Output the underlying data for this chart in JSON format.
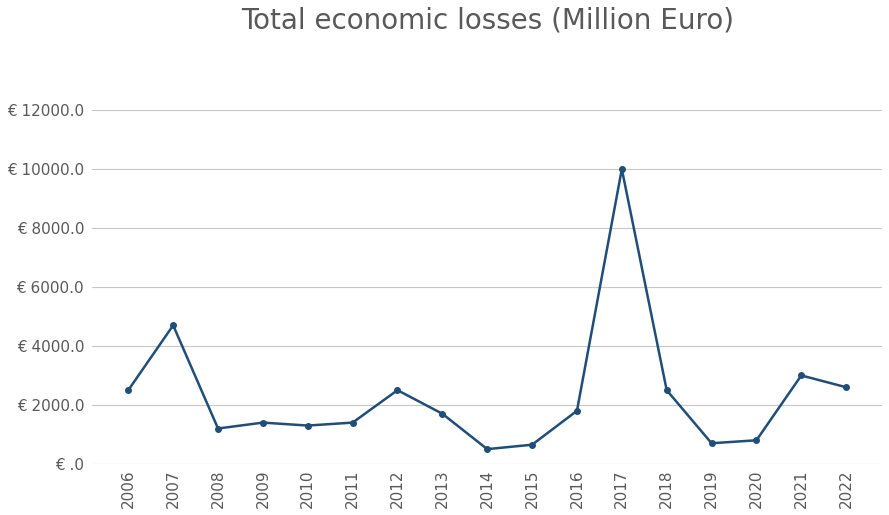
{
  "title": "Total economic losses (Million Euro)",
  "years": [
    2006,
    2007,
    2008,
    2009,
    2010,
    2011,
    2012,
    2013,
    2014,
    2015,
    2016,
    2017,
    2018,
    2019,
    2020,
    2021,
    2022
  ],
  "values": [
    2500,
    4700,
    1200,
    1400,
    1300,
    1400,
    2500,
    1700,
    500,
    650,
    1800,
    10000,
    2500,
    700,
    800,
    3000,
    2600
  ],
  "line_color": "#1f4e79",
  "marker": "o",
  "marker_size": 4,
  "line_width": 1.8,
  "ylim": [
    0,
    14000
  ],
  "yticks": [
    0,
    2000,
    4000,
    6000,
    8000,
    10000,
    12000
  ],
  "ytick_labels": [
    "€ .0",
    "€ 2000.0",
    "€ 4000.0",
    "€ 6000.0",
    "€ 8000.0",
    "€ 10000.0",
    "€ 12000.0"
  ],
  "background_color": "#ffffff",
  "grid_color": "#c8c8c8",
  "title_fontsize": 20,
  "tick_fontsize": 11,
  "title_color": "#595959"
}
